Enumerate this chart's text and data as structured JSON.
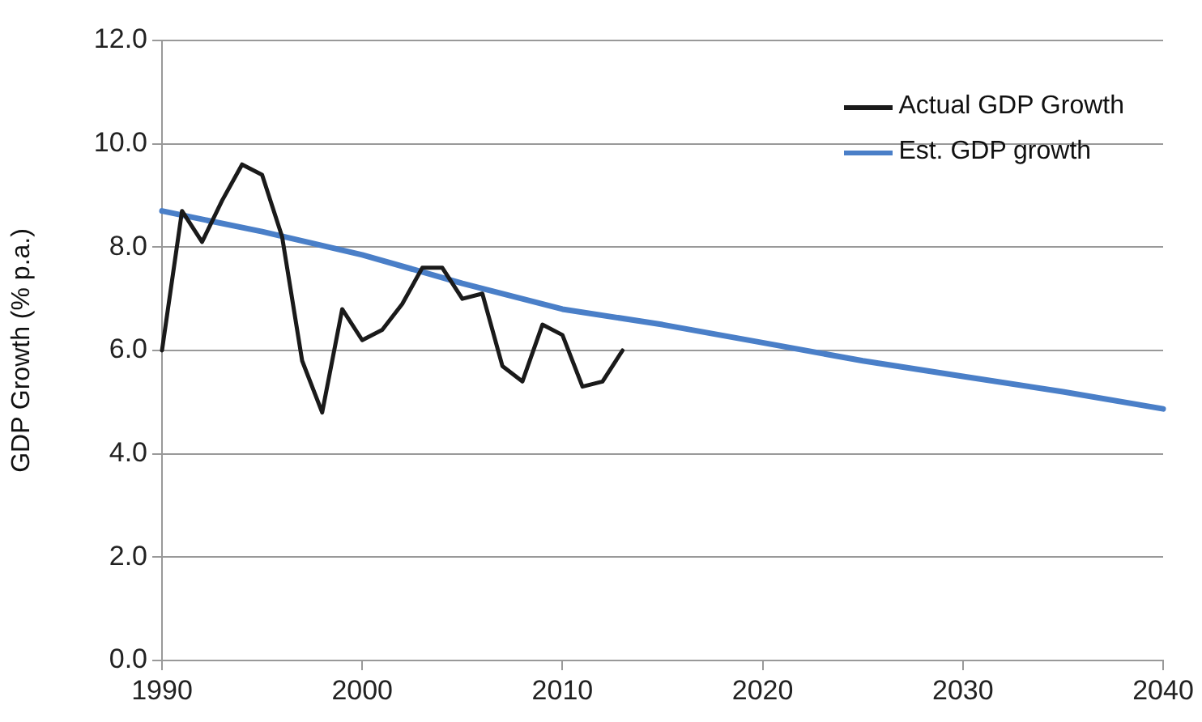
{
  "chart_data": {
    "type": "line",
    "ylabel": "GDP Growth (% p.a.)",
    "xlim": [
      1990,
      2040
    ],
    "xticks": [
      1990,
      2000,
      2010,
      2020,
      2030,
      2040
    ],
    "ylim": [
      0,
      12
    ],
    "yticks": [
      {
        "value": 0,
        "label": "0.0"
      },
      {
        "value": 2,
        "label": "2.0"
      },
      {
        "value": 4,
        "label": "4.0"
      },
      {
        "value": 6,
        "label": "6.0"
      },
      {
        "value": 8,
        "label": "8.0"
      },
      {
        "value": 10,
        "label": "10.0"
      },
      {
        "value": 12,
        "label": "12.0"
      }
    ],
    "grid": "y",
    "legend": "top right",
    "marker": "none",
    "series": [
      {
        "name": "Actual GDP Growth",
        "color": "#1a1a1a",
        "x": [
          1990,
          1991,
          1992,
          1993,
          1994,
          1995,
          1996,
          1997,
          1998,
          1999,
          2000,
          2001,
          2002,
          2003,
          2004,
          2005,
          2006,
          2007,
          2008,
          2009,
          2010,
          2011,
          2012,
          2013
        ],
        "values": [
          6.0,
          8.7,
          8.1,
          8.9,
          9.6,
          9.4,
          8.2,
          5.8,
          4.8,
          6.8,
          6.2,
          6.4,
          6.9,
          7.6,
          7.6,
          7.0,
          7.1,
          5.7,
          5.4,
          6.5,
          6.3,
          5.3,
          5.4,
          6.0
        ]
      },
      {
        "name": "Est. GDP growth",
        "color": "#4a7fc8",
        "x": [
          1990,
          1995,
          2000,
          2005,
          2010,
          2015,
          2020,
          2025,
          2030,
          2035,
          2040
        ],
        "values": [
          8.7,
          8.3,
          7.85,
          7.3,
          6.8,
          6.5,
          6.15,
          5.8,
          5.5,
          5.2,
          4.87
        ]
      }
    ]
  }
}
